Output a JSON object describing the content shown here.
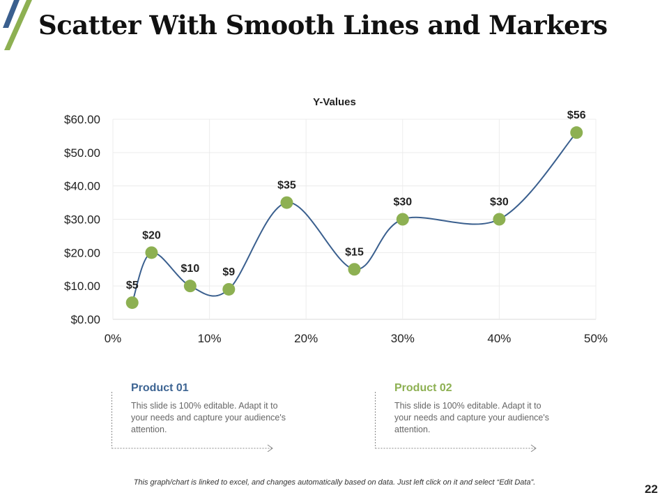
{
  "slide": {
    "title": "Scatter With Smooth Lines and Markers",
    "page_number": "22",
    "footnote": "This graph/chart is linked to excel, and changes automatically  based on data.  Just left click on it and select “Edit Data”."
  },
  "colors": {
    "line": "#3a5f8e",
    "marker": "#8db052",
    "title_blue": "#3e6593",
    "title_green": "#8db052",
    "accent_blue": "#3a5f8e",
    "accent_green": "#8db052",
    "grid": "#ececec"
  },
  "icons": [
    "slash-stripe-decoration",
    "dotted-arrow-connector"
  ],
  "chart_data": {
    "type": "scatter",
    "title": "Y-Values",
    "smooth": true,
    "markers": true,
    "x": [
      2,
      4,
      8,
      12,
      18,
      25,
      30,
      40,
      48
    ],
    "x_unit": "%",
    "series": [
      {
        "values": [
          5,
          20,
          10,
          9,
          35,
          15,
          30,
          30,
          56
        ]
      }
    ],
    "data_labels": [
      "$5",
      "$20",
      "$10",
      "$9",
      "$35",
      "$15",
      "$30",
      "$30",
      "$56"
    ],
    "xlim": [
      0,
      50
    ],
    "ylim": [
      0,
      60
    ],
    "x_ticks": [
      0,
      10,
      20,
      30,
      40,
      50
    ],
    "x_tick_labels": [
      "0%",
      "10%",
      "20%",
      "30%",
      "40%",
      "50%"
    ],
    "y_ticks": [
      0,
      10,
      20,
      30,
      40,
      50,
      60
    ],
    "y_tick_labels": [
      "$0.00",
      "$10.00",
      "$20.00",
      "$30.00",
      "$40.00",
      "$50.00",
      "$60.00"
    ],
    "grid": true,
    "legend": "none"
  },
  "cards": [
    {
      "title": "Product 01",
      "text": "This slide is 100% editable. Adapt it to your needs and capture your audience's attention."
    },
    {
      "title": "Product 02",
      "text": "This slide is 100% editable. Adapt it to your needs and capture your audience's attention."
    }
  ]
}
